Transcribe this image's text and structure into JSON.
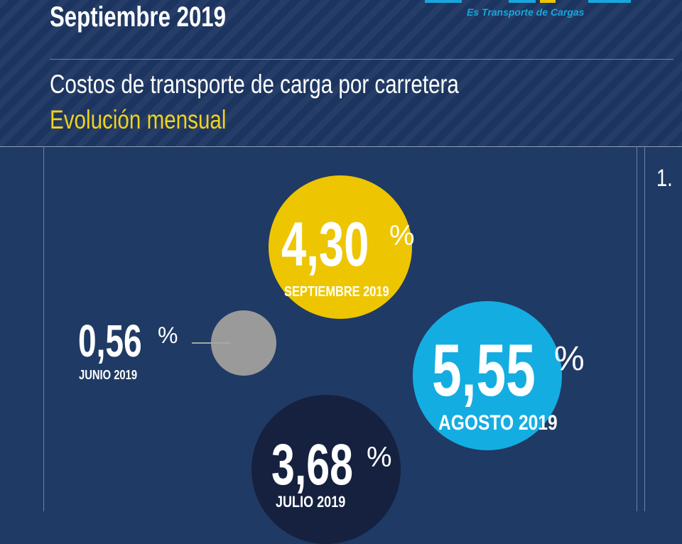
{
  "header": {
    "title": "Septiembre 2019",
    "logo_tagline": "Es Transporte de Cargas",
    "subtitle": "Costos de transporte de carga por carretera",
    "subtitle2": "Evolución mensual"
  },
  "side": {
    "number": "1."
  },
  "colors": {
    "background": "#1f3a64",
    "september": "#edc500",
    "august": "#14ade2",
    "july": "#15213f",
    "june": "#9a9a9a",
    "accent_yellow": "#f2d21a",
    "logo_blue": "#1aa6dc"
  },
  "bubbles": {
    "septiembre": {
      "value": "4,30",
      "percent": "%",
      "label": "SEPTIEMBRE 2019"
    },
    "agosto": {
      "value": "5,55",
      "percent": "%",
      "label": "AGOSTO 2019"
    },
    "julio": {
      "value": "3,68",
      "percent": "%",
      "label": "JULIO 2019"
    },
    "junio": {
      "value": "0,56",
      "percent": "%",
      "label": "JUNIO 2019"
    }
  }
}
